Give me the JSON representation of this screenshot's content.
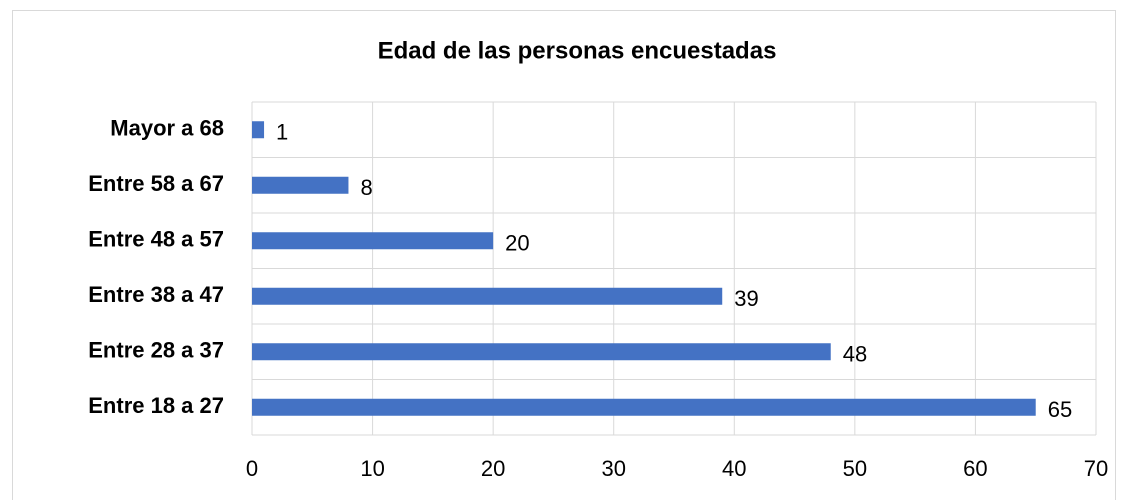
{
  "chart_data": {
    "type": "bar",
    "orientation": "horizontal",
    "title": "Edad de las personas encuestadas",
    "categories": [
      "Entre 18 a 27",
      "Entre 28 a 37",
      "Entre 38 a 47",
      "Entre 48 a 57",
      "Entre 58 a 67",
      "Mayor a 68"
    ],
    "values": [
      65,
      48,
      39,
      20,
      8,
      1
    ],
    "color": "#4472c4",
    "xlim": [
      0,
      70
    ],
    "xticks": [
      0,
      10,
      20,
      30,
      40,
      50,
      60,
      70
    ],
    "grid": true
  }
}
